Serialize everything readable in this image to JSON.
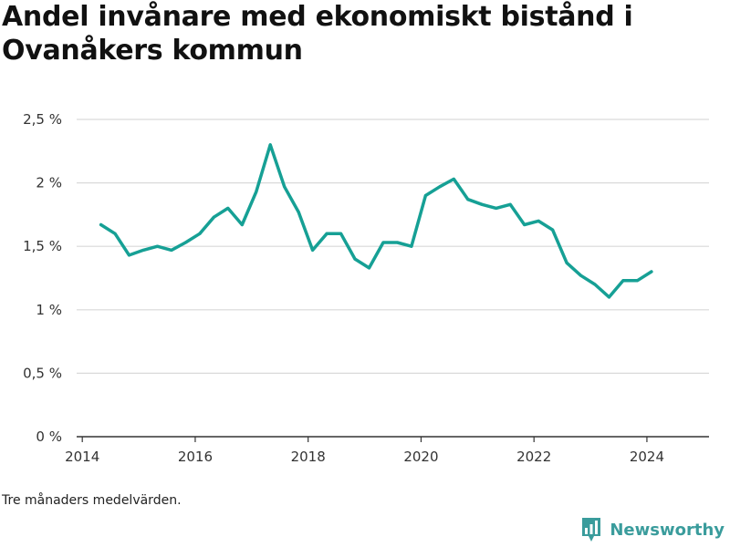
{
  "title": "Andel invånare med ekonomiskt bistånd i Ovanåkers kommun",
  "note": "Tre månaders medelvärden.",
  "brand": {
    "name": "Newsworthy",
    "logo_icon": "bar-chart-pin-icon",
    "color": "#3a9c9c"
  },
  "colors": {
    "line": "#16a095",
    "grid": "#d9d9d9",
    "axis": "#333333"
  },
  "chart_data": {
    "type": "line",
    "title": "Andel invånare med ekonomiskt bistånd i Ovanåkers kommun",
    "xlabel": "",
    "ylabel": "",
    "xlim": [
      2013.9,
      2025.1
    ],
    "ylim": [
      0,
      2.5
    ],
    "x_ticks": [
      2014,
      2016,
      2018,
      2020,
      2022,
      2024
    ],
    "x_tick_labels": [
      "2014",
      "2016",
      "2018",
      "2020",
      "2022",
      "2024"
    ],
    "y_ticks": [
      0,
      0.5,
      1,
      1.5,
      2,
      2.5
    ],
    "y_tick_labels": [
      "0 %",
      "0,5 %",
      "1 %",
      "1,5 %",
      "2 %",
      "2,5 %"
    ],
    "grid": true,
    "legend": "none",
    "series": [
      {
        "x": [
          2014.33,
          2014.58,
          2014.83,
          2015.08,
          2015.33,
          2015.58,
          2015.83,
          2016.08,
          2016.33,
          2016.58,
          2016.83,
          2017.08,
          2017.33,
          2017.58,
          2017.83,
          2018.08,
          2018.33,
          2018.58,
          2018.83,
          2019.08,
          2019.33,
          2019.58,
          2019.83,
          2020.08,
          2020.33,
          2020.58,
          2020.83,
          2021.08,
          2021.33,
          2021.58,
          2021.83,
          2022.08,
          2022.33,
          2022.58,
          2022.83,
          2023.08,
          2023.33,
          2023.58,
          2023.83,
          2024.08
        ],
        "values": [
          1.67,
          1.6,
          1.43,
          1.47,
          1.5,
          1.47,
          1.53,
          1.6,
          1.73,
          1.8,
          1.67,
          1.93,
          2.3,
          1.97,
          1.77,
          1.47,
          1.6,
          1.6,
          1.4,
          1.33,
          1.53,
          1.53,
          1.5,
          1.9,
          1.97,
          2.03,
          1.87,
          1.83,
          1.8,
          1.83,
          1.67,
          1.7,
          1.63,
          1.37,
          1.27,
          1.2,
          1.1,
          1.23,
          1.23,
          1.3
        ]
      }
    ]
  }
}
